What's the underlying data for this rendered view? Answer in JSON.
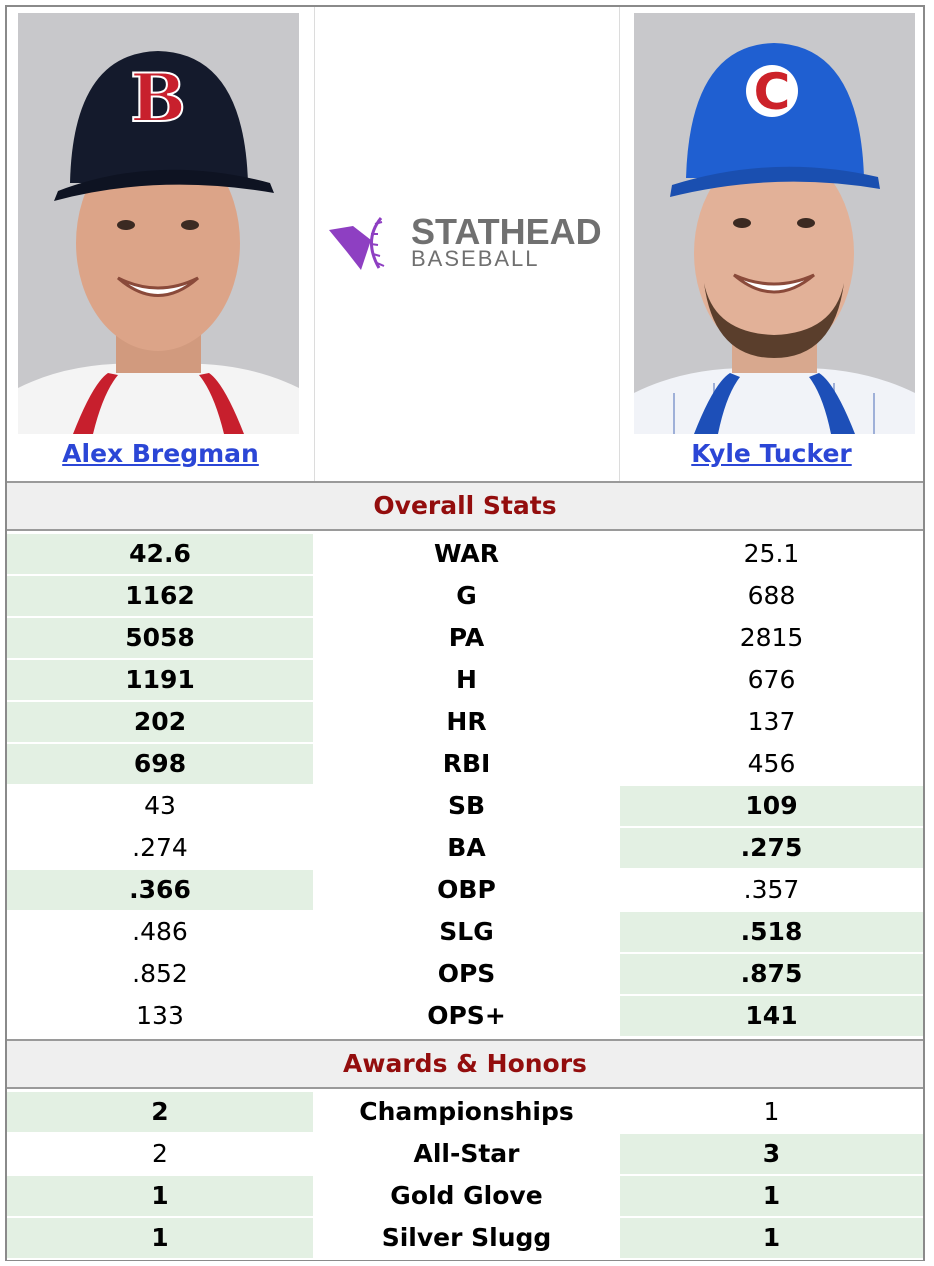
{
  "players": {
    "left": {
      "name": "Alex Bregman"
    },
    "right": {
      "name": "Kyle Tucker"
    }
  },
  "logo": {
    "line1": "STATHEAD",
    "line2": "BASEBALL",
    "color": "#8e3fc2"
  },
  "colors": {
    "winner_bg": "#e3f0e3",
    "section_text": "#930d0d",
    "link": "#2b46d6"
  },
  "sections": {
    "overall": "Overall Stats",
    "awards": "Awards & Honors"
  },
  "overall_rows": [
    {
      "stat": "WAR",
      "left": "42.6",
      "right": "25.1",
      "winner": "left"
    },
    {
      "stat": "G",
      "left": "1162",
      "right": "688",
      "winner": "left"
    },
    {
      "stat": "PA",
      "left": "5058",
      "right": "2815",
      "winner": "left"
    },
    {
      "stat": "H",
      "left": "1191",
      "right": "676",
      "winner": "left"
    },
    {
      "stat": "HR",
      "left": "202",
      "right": "137",
      "winner": "left"
    },
    {
      "stat": "RBI",
      "left": "698",
      "right": "456",
      "winner": "left"
    },
    {
      "stat": "SB",
      "left": "43",
      "right": "109",
      "winner": "right"
    },
    {
      "stat": "BA",
      "left": ".274",
      "right": ".275",
      "winner": "right"
    },
    {
      "stat": "OBP",
      "left": ".366",
      "right": ".357",
      "winner": "left"
    },
    {
      "stat": "SLG",
      "left": ".486",
      "right": ".518",
      "winner": "right"
    },
    {
      "stat": "OPS",
      "left": ".852",
      "right": ".875",
      "winner": "right"
    },
    {
      "stat": "OPS+",
      "left": "133",
      "right": "141",
      "winner": "right"
    }
  ],
  "award_rows": [
    {
      "stat": "Championships",
      "left": "2",
      "right": "1",
      "winner": "left"
    },
    {
      "stat": "All-Star",
      "left": "2",
      "right": "3",
      "winner": "right"
    },
    {
      "stat": "Gold Glove",
      "left": "1",
      "right": "1",
      "winner": "both"
    },
    {
      "stat": "Silver Slugg",
      "left": "1",
      "right": "1",
      "winner": "both"
    }
  ]
}
